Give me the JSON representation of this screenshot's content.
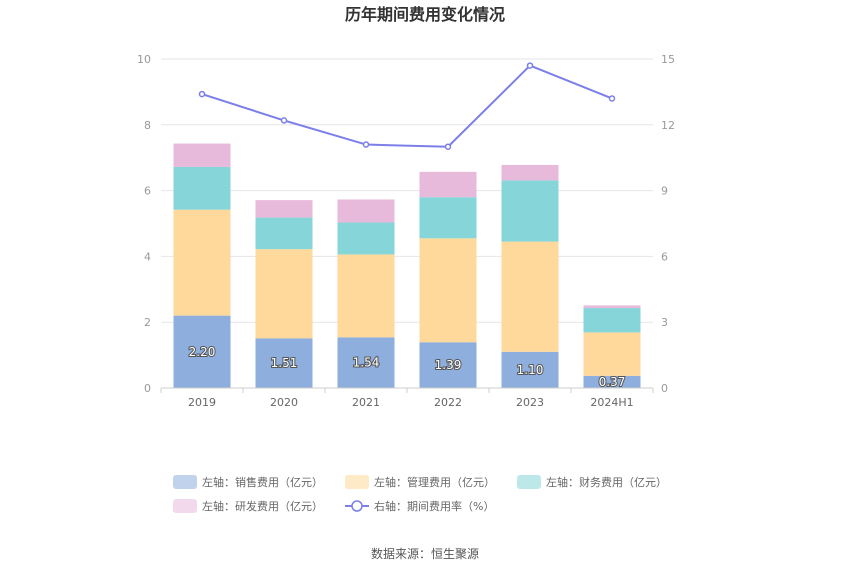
{
  "chart_data": {
    "type": "bar",
    "title": "历年期间费用变化情况",
    "categories": [
      "2019",
      "2020",
      "2021",
      "2022",
      "2023",
      "2024H1"
    ],
    "stacked": true,
    "series": [
      {
        "name": "左轴：销售费用（亿元）",
        "axis": "left",
        "color": "#8eaedd",
        "values": [
          2.2,
          1.51,
          1.54,
          1.39,
          1.1,
          0.37
        ],
        "labels": [
          "2.20",
          "1.51",
          "1.54",
          "1.39",
          "1.10",
          "0.37"
        ]
      },
      {
        "name": "左轴：管理费用（亿元）",
        "axis": "left",
        "color": "#ffd89b",
        "values": [
          3.22,
          2.71,
          2.52,
          3.16,
          3.35,
          1.32
        ]
      },
      {
        "name": "左轴：财务费用（亿元）",
        "axis": "left",
        "color": "#86d6d9",
        "values": [
          1.3,
          0.96,
          0.97,
          1.25,
          1.86,
          0.74
        ]
      },
      {
        "name": "左轴：研发费用（亿元）",
        "axis": "left",
        "color": "#e7b9db",
        "values": [
          0.71,
          0.53,
          0.7,
          0.77,
          0.47,
          0.08
        ]
      }
    ],
    "line_series": {
      "name": "右轴：期间费用率（%）",
      "axis": "right",
      "color": "#7b7fe8",
      "values": [
        13.4,
        12.2,
        11.1,
        11.0,
        14.7,
        13.2
      ]
    },
    "left_axis": {
      "min": 0,
      "max": 10,
      "ticks": [
        "0",
        "2",
        "4",
        "6",
        "8",
        "10"
      ]
    },
    "right_axis": {
      "min": 0,
      "max": 15,
      "ticks": [
        "0",
        "3",
        "6",
        "9",
        "12",
        "15"
      ]
    },
    "legend_position": "bottom",
    "grid": true
  },
  "source": "数据来源：恒生聚源"
}
